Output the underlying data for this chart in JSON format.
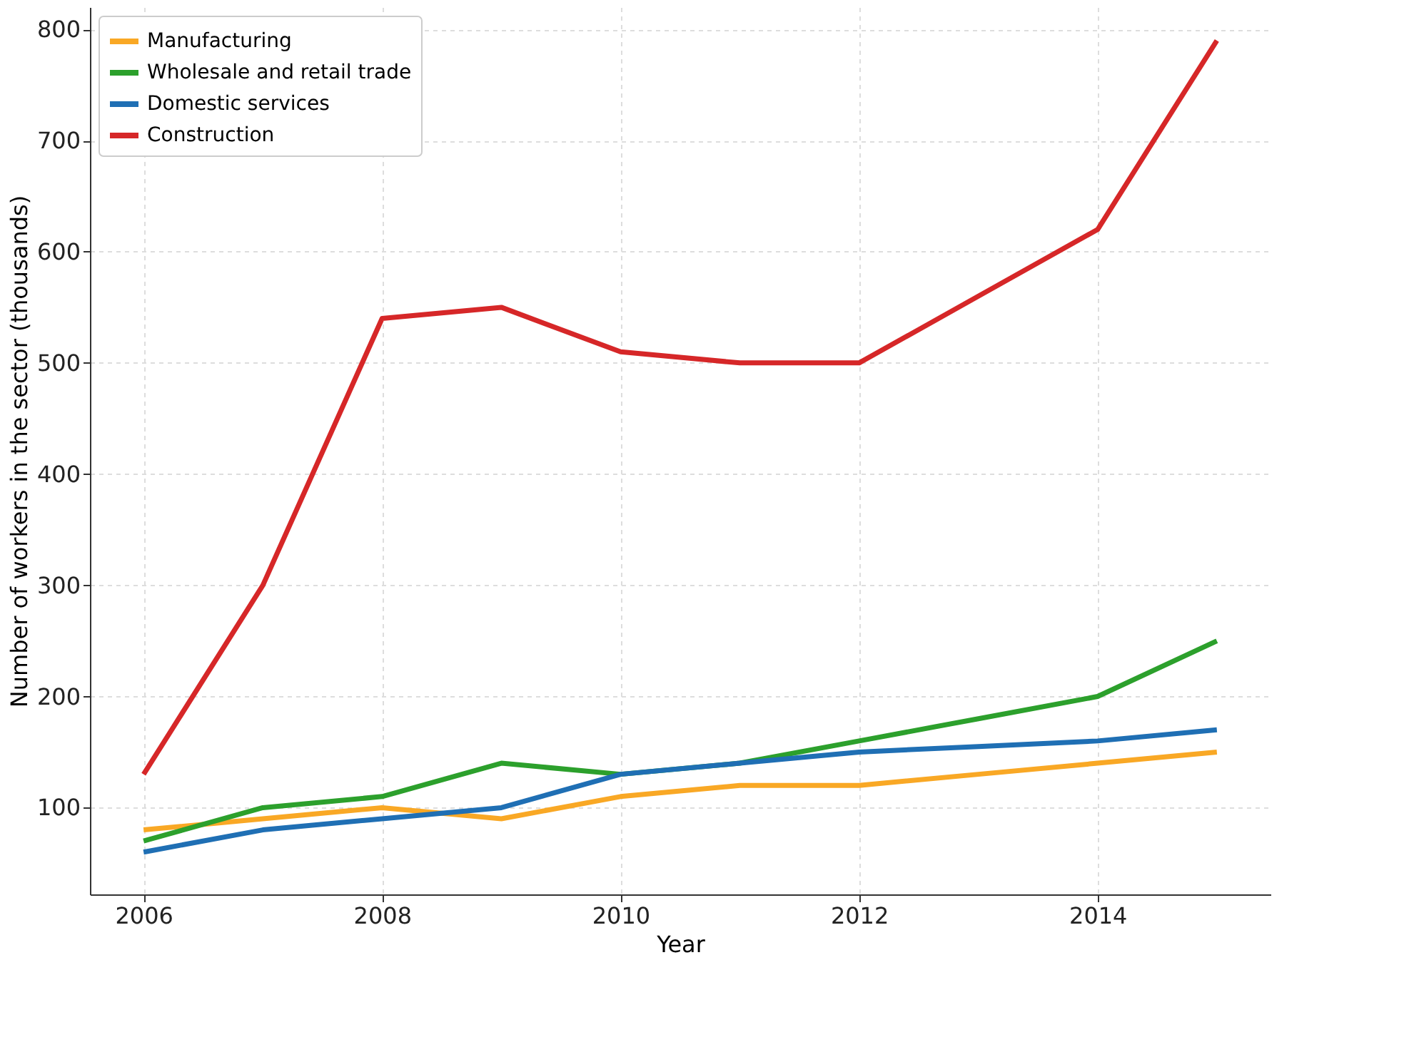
{
  "chart_data": {
    "type": "line",
    "xlabel": "Year",
    "ylabel": "Number of workers in the sector (thousands)",
    "x": [
      2006,
      2007,
      2008,
      2009,
      2010,
      2011,
      2012,
      2013,
      2014,
      2015
    ],
    "series": [
      {
        "name": "Manufacturing",
        "color": "#f9a825",
        "values": [
          80,
          90,
          100,
          90,
          110,
          120,
          120,
          130,
          140,
          150
        ]
      },
      {
        "name": "Wholesale and retail trade",
        "color": "#2ca02c",
        "values": [
          70,
          100,
          110,
          140,
          130,
          140,
          160,
          180,
          200,
          250
        ]
      },
      {
        "name": "Domestic services",
        "color": "#1f6fb4",
        "values": [
          60,
          80,
          90,
          100,
          130,
          140,
          150,
          155,
          160,
          170
        ]
      },
      {
        "name": "Construction",
        "color": "#d62728",
        "values": [
          130,
          300,
          540,
          550,
          510,
          500,
          500,
          560,
          620,
          790
        ]
      }
    ],
    "xlim": [
      2005.55,
      2015.45
    ],
    "xticks": [
      2006,
      2008,
      2010,
      2012,
      2014
    ],
    "ylim": [
      22,
      820
    ],
    "yticks": [
      100,
      200,
      300,
      400,
      500,
      600,
      700,
      800
    ],
    "grid": true,
    "legend": "top left",
    "line_style": "solid",
    "marker": "none"
  }
}
